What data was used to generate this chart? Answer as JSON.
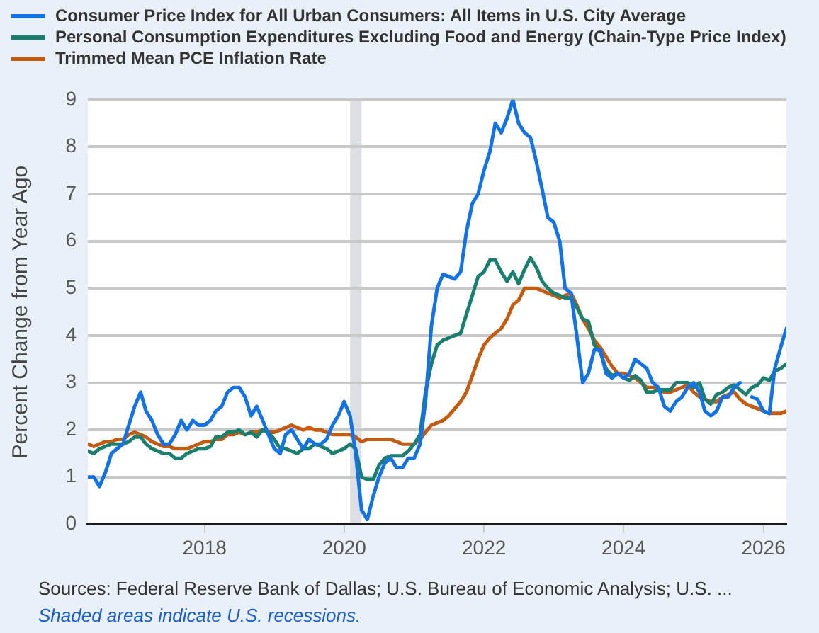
{
  "chart_data": {
    "type": "line",
    "ylabel": "Percent Change from Year Ago",
    "x": [
      "2016-05",
      "2016-06",
      "2016-07",
      "2016-08",
      "2016-09",
      "2016-10",
      "2016-11",
      "2016-12",
      "2017-01",
      "2017-02",
      "2017-03",
      "2017-04",
      "2017-05",
      "2017-06",
      "2017-07",
      "2017-08",
      "2017-09",
      "2017-10",
      "2017-11",
      "2017-12",
      "2018-01",
      "2018-02",
      "2018-03",
      "2018-04",
      "2018-05",
      "2018-06",
      "2018-07",
      "2018-08",
      "2018-09",
      "2018-10",
      "2018-11",
      "2018-12",
      "2019-01",
      "2019-02",
      "2019-03",
      "2019-04",
      "2019-05",
      "2019-06",
      "2019-07",
      "2019-08",
      "2019-09",
      "2019-10",
      "2019-11",
      "2019-12",
      "2020-01",
      "2020-02",
      "2020-03",
      "2020-04",
      "2020-05",
      "2020-06",
      "2020-07",
      "2020-08",
      "2020-09",
      "2020-10",
      "2020-11",
      "2020-12",
      "2021-01",
      "2021-02",
      "2021-03",
      "2021-04",
      "2021-05",
      "2021-06",
      "2021-07",
      "2021-08",
      "2021-09",
      "2021-10",
      "2021-11",
      "2021-12",
      "2022-01",
      "2022-02",
      "2022-03",
      "2022-04",
      "2022-05",
      "2022-06",
      "2022-07",
      "2022-08",
      "2022-09",
      "2022-10",
      "2022-11",
      "2022-12",
      "2023-01",
      "2023-02",
      "2023-03",
      "2023-04",
      "2023-05",
      "2023-06",
      "2023-07",
      "2023-08",
      "2023-09",
      "2023-10",
      "2023-11",
      "2023-12",
      "2024-01",
      "2024-02",
      "2024-03",
      "2024-04",
      "2024-05",
      "2024-06",
      "2024-07",
      "2024-08",
      "2024-09",
      "2024-10",
      "2024-11",
      "2024-12",
      "2025-01",
      "2025-02",
      "2025-03",
      "2025-04",
      "2025-05",
      "2025-06",
      "2025-07",
      "2025-08",
      "2025-09",
      "2025-10",
      "2025-11",
      "2025-12",
      "2026-01",
      "2026-02",
      "2026-03",
      "2026-04",
      "2026-05"
    ],
    "series": [
      {
        "name": "Consumer Price Index for All Urban Consumers: All Items in U.S. City Average",
        "color": "#1373e6",
        "values": [
          1.0,
          1.0,
          0.8,
          1.1,
          1.5,
          1.6,
          1.7,
          2.1,
          2.5,
          2.8,
          2.4,
          2.2,
          1.9,
          1.7,
          1.7,
          1.9,
          2.2,
          2.0,
          2.2,
          2.1,
          2.1,
          2.2,
          2.4,
          2.5,
          2.8,
          2.9,
          2.9,
          2.7,
          2.3,
          2.5,
          2.2,
          1.9,
          1.6,
          1.5,
          1.9,
          2.0,
          1.8,
          1.6,
          1.8,
          1.7,
          1.7,
          1.8,
          2.1,
          2.3,
          2.6,
          2.3,
          1.5,
          0.3,
          0.1,
          0.6,
          1.0,
          1.3,
          1.4,
          1.2,
          1.2,
          1.4,
          1.4,
          1.7,
          2.6,
          4.2,
          5.0,
          5.3,
          5.25,
          5.2,
          5.35,
          6.2,
          6.8,
          7.0,
          7.5,
          7.9,
          8.5,
          8.3,
          8.6,
          9.0,
          8.5,
          8.3,
          8.2,
          7.7,
          7.1,
          6.5,
          6.4,
          6.0,
          5.0,
          4.9,
          4.0,
          3.0,
          3.2,
          3.7,
          3.7,
          3.2,
          3.1,
          3.2,
          3.1,
          3.2,
          3.5,
          3.4,
          3.3,
          3.0,
          2.9,
          2.5,
          2.4,
          2.6,
          2.7,
          2.9,
          3.0,
          2.8,
          2.4,
          2.3,
          2.4,
          2.7,
          2.7,
          2.9,
          3.0,
          null,
          2.7,
          2.65,
          2.4,
          2.35,
          3.3,
          3.75,
          4.15
        ]
      },
      {
        "name": "Personal Consumption Expenditures Excluding Food and Energy (Chain-Type Price Index)",
        "color": "#1a7f6e",
        "values": [
          1.55,
          1.5,
          1.6,
          1.65,
          1.7,
          1.7,
          1.7,
          1.75,
          1.85,
          1.85,
          1.7,
          1.6,
          1.55,
          1.5,
          1.5,
          1.4,
          1.4,
          1.5,
          1.55,
          1.6,
          1.6,
          1.65,
          1.85,
          1.85,
          1.95,
          1.95,
          2.0,
          1.9,
          1.95,
          1.85,
          2.0,
          1.95,
          1.8,
          1.6,
          1.6,
          1.55,
          1.5,
          1.6,
          1.6,
          1.7,
          1.65,
          1.6,
          1.5,
          1.55,
          1.6,
          1.7,
          1.6,
          1.0,
          0.95,
          0.95,
          1.25,
          1.4,
          1.45,
          1.45,
          1.45,
          1.55,
          1.7,
          1.9,
          2.8,
          3.4,
          3.8,
          3.9,
          3.95,
          4.0,
          4.05,
          4.45,
          4.85,
          5.25,
          5.35,
          5.6,
          5.6,
          5.35,
          5.15,
          5.35,
          5.1,
          5.4,
          5.65,
          5.45,
          5.15,
          5.0,
          4.9,
          4.85,
          4.8,
          4.8,
          4.6,
          4.35,
          4.3,
          3.8,
          3.65,
          3.3,
          3.15,
          3.2,
          3.1,
          3.05,
          3.15,
          3.05,
          2.8,
          2.8,
          2.85,
          2.85,
          2.85,
          3.0,
          3.0,
          3.0,
          2.9,
          3.0,
          2.65,
          2.55,
          2.75,
          2.8,
          2.9,
          2.95,
          2.85,
          2.75,
          2.9,
          2.95,
          3.1,
          3.05,
          3.25,
          3.3,
          3.4
        ]
      },
      {
        "name": "Trimmed Mean PCE Inflation Rate",
        "color": "#c55a11",
        "values": [
          1.7,
          1.65,
          1.7,
          1.75,
          1.75,
          1.8,
          1.8,
          1.9,
          1.95,
          1.9,
          1.85,
          1.75,
          1.7,
          1.65,
          1.65,
          1.6,
          1.6,
          1.6,
          1.65,
          1.7,
          1.75,
          1.75,
          1.8,
          1.8,
          1.9,
          1.9,
          1.95,
          1.9,
          1.95,
          1.95,
          2.0,
          1.95,
          1.95,
          2.0,
          2.05,
          2.1,
          2.05,
          2.0,
          2.05,
          2.0,
          2.0,
          1.95,
          1.9,
          1.9,
          1.9,
          1.9,
          1.85,
          1.75,
          1.8,
          1.8,
          1.8,
          1.8,
          1.8,
          1.75,
          1.7,
          1.7,
          1.7,
          1.8,
          1.95,
          2.1,
          2.15,
          2.2,
          2.3,
          2.45,
          2.6,
          2.8,
          3.15,
          3.5,
          3.8,
          3.95,
          4.05,
          4.15,
          4.35,
          4.65,
          4.75,
          5.0,
          5.0,
          5.0,
          4.95,
          4.9,
          4.85,
          4.8,
          4.85,
          4.9,
          4.65,
          4.35,
          4.15,
          3.9,
          3.75,
          3.55,
          3.35,
          3.2,
          3.2,
          3.15,
          3.1,
          3.0,
          2.9,
          2.9,
          2.85,
          2.8,
          2.8,
          2.85,
          2.9,
          2.95,
          2.8,
          2.7,
          2.65,
          2.6,
          2.6,
          2.7,
          2.75,
          2.8,
          2.65,
          2.55,
          2.5,
          2.45,
          2.4,
          2.35,
          2.35,
          2.35,
          2.4
        ]
      }
    ],
    "xlim": [
      "2016-05",
      "2026-05"
    ],
    "xticks": [
      "2018",
      "2020",
      "2022",
      "2024",
      "2026"
    ],
    "ylim": [
      0,
      9
    ],
    "yticks": [
      0,
      1,
      2,
      3,
      4,
      5,
      6,
      7,
      8,
      9
    ],
    "grid": "y",
    "legend": "top",
    "line_style": "solid",
    "bands": [
      {
        "axis": "x",
        "from": "2020-02",
        "to": "2020-04",
        "color": "#dcdfe4"
      }
    ],
    "annotations": [
      "Sources: Federal Reserve Bank of Dallas; U.S. Bureau of Economic Analysis; U.S. ...",
      "Shaded areas indicate U.S. recessions."
    ]
  }
}
